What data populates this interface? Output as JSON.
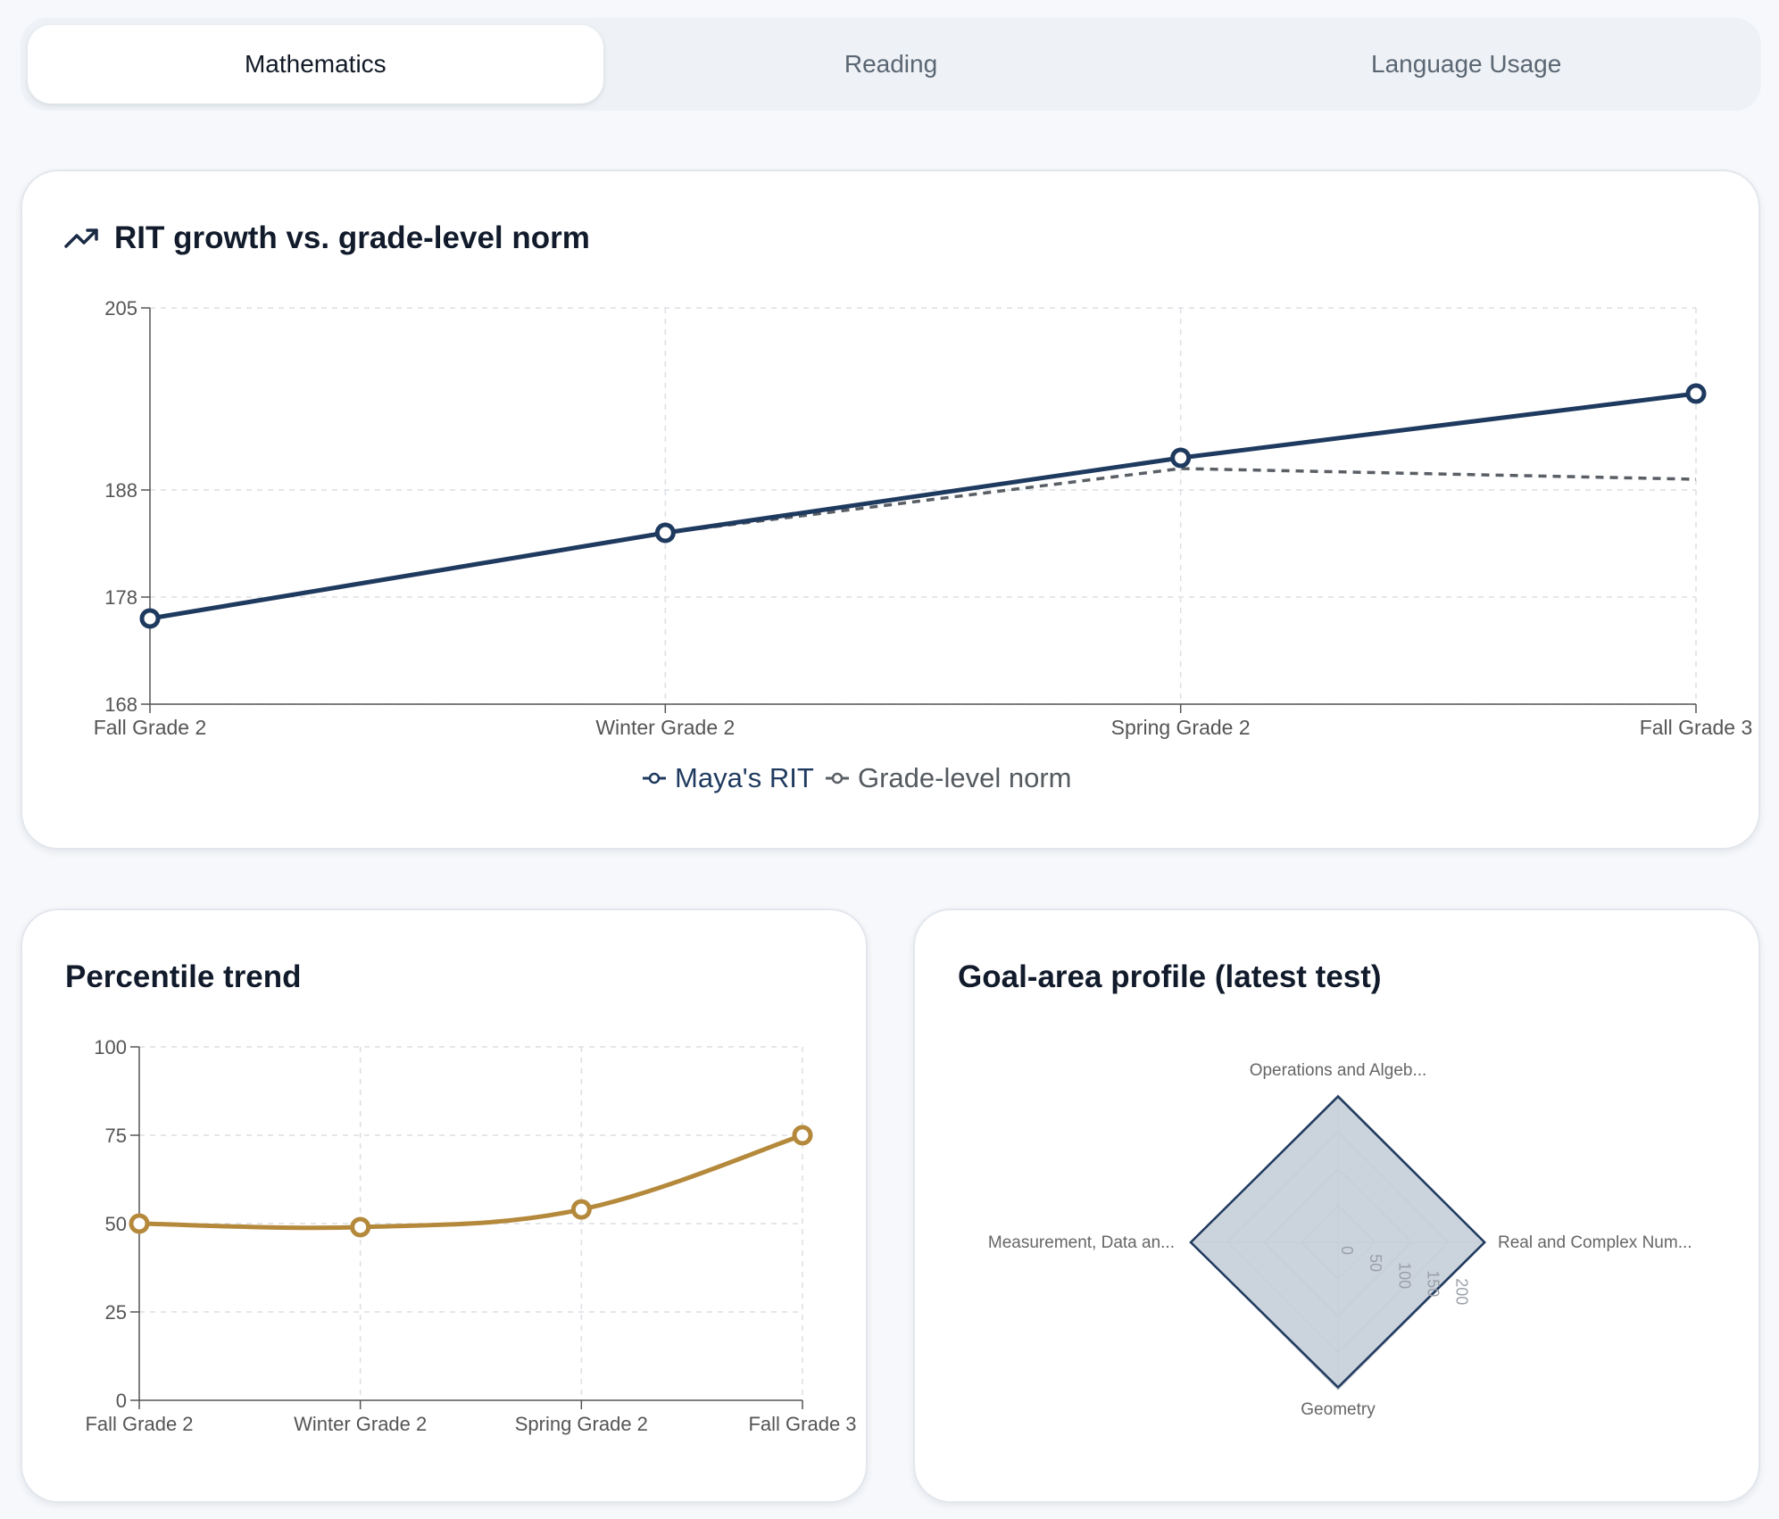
{
  "tabs": [
    {
      "label": "Mathematics",
      "active": true
    },
    {
      "label": "Reading",
      "active": false
    },
    {
      "label": "Language Usage",
      "active": false
    }
  ],
  "rit_card": {
    "title": "RIT growth vs. grade-level norm",
    "icon": "trending-up-icon"
  },
  "percentile_card": {
    "title": "Percentile trend"
  },
  "goal_card": {
    "title": "Goal-area profile (latest test)"
  },
  "colors": {
    "rit": "#1f3a5f",
    "norm": "#5a5f66",
    "percentile": "#b5893b",
    "radar_fill": "#c5ced9",
    "radar_stroke": "#1f3a5f"
  },
  "chart_data": [
    {
      "type": "line",
      "title": "RIT growth vs. grade-level norm",
      "categories": [
        "Fall Grade 2",
        "Winter Grade 2",
        "Spring Grade 2",
        "Fall Grade 3"
      ],
      "series": [
        {
          "name": "Maya's RIT",
          "values": [
            176,
            184,
            191,
            197
          ]
        },
        {
          "name": "Grade-level norm",
          "values": [
            176,
            184,
            190,
            189
          ]
        }
      ],
      "ylim": [
        168,
        205
      ],
      "yticks": [
        "205",
        "188",
        "178",
        "168"
      ],
      "grid": true,
      "legend": "bottom"
    },
    {
      "type": "line",
      "title": "Percentile trend",
      "categories": [
        "Fall Grade 2",
        "Winter Grade 2",
        "Spring Grade 2",
        "Fall Grade 3"
      ],
      "series": [
        {
          "values": [
            50,
            49,
            54,
            75
          ]
        }
      ],
      "ylim": [
        0,
        100
      ],
      "yticks": [
        "100",
        "75",
        "50",
        "25",
        "0"
      ],
      "grid": true
    },
    {
      "type": "radar",
      "title": "Goal-area profile (latest test)",
      "axes": [
        "Operations and Algeb...",
        "Real and Complex Num...",
        "Geometry",
        "Measurement, Data an..."
      ],
      "values": [
        198,
        199,
        197,
        200
      ],
      "rlim": [
        0,
        200
      ],
      "rticks": [
        "0",
        "50",
        "100",
        "150",
        "200"
      ]
    }
  ]
}
